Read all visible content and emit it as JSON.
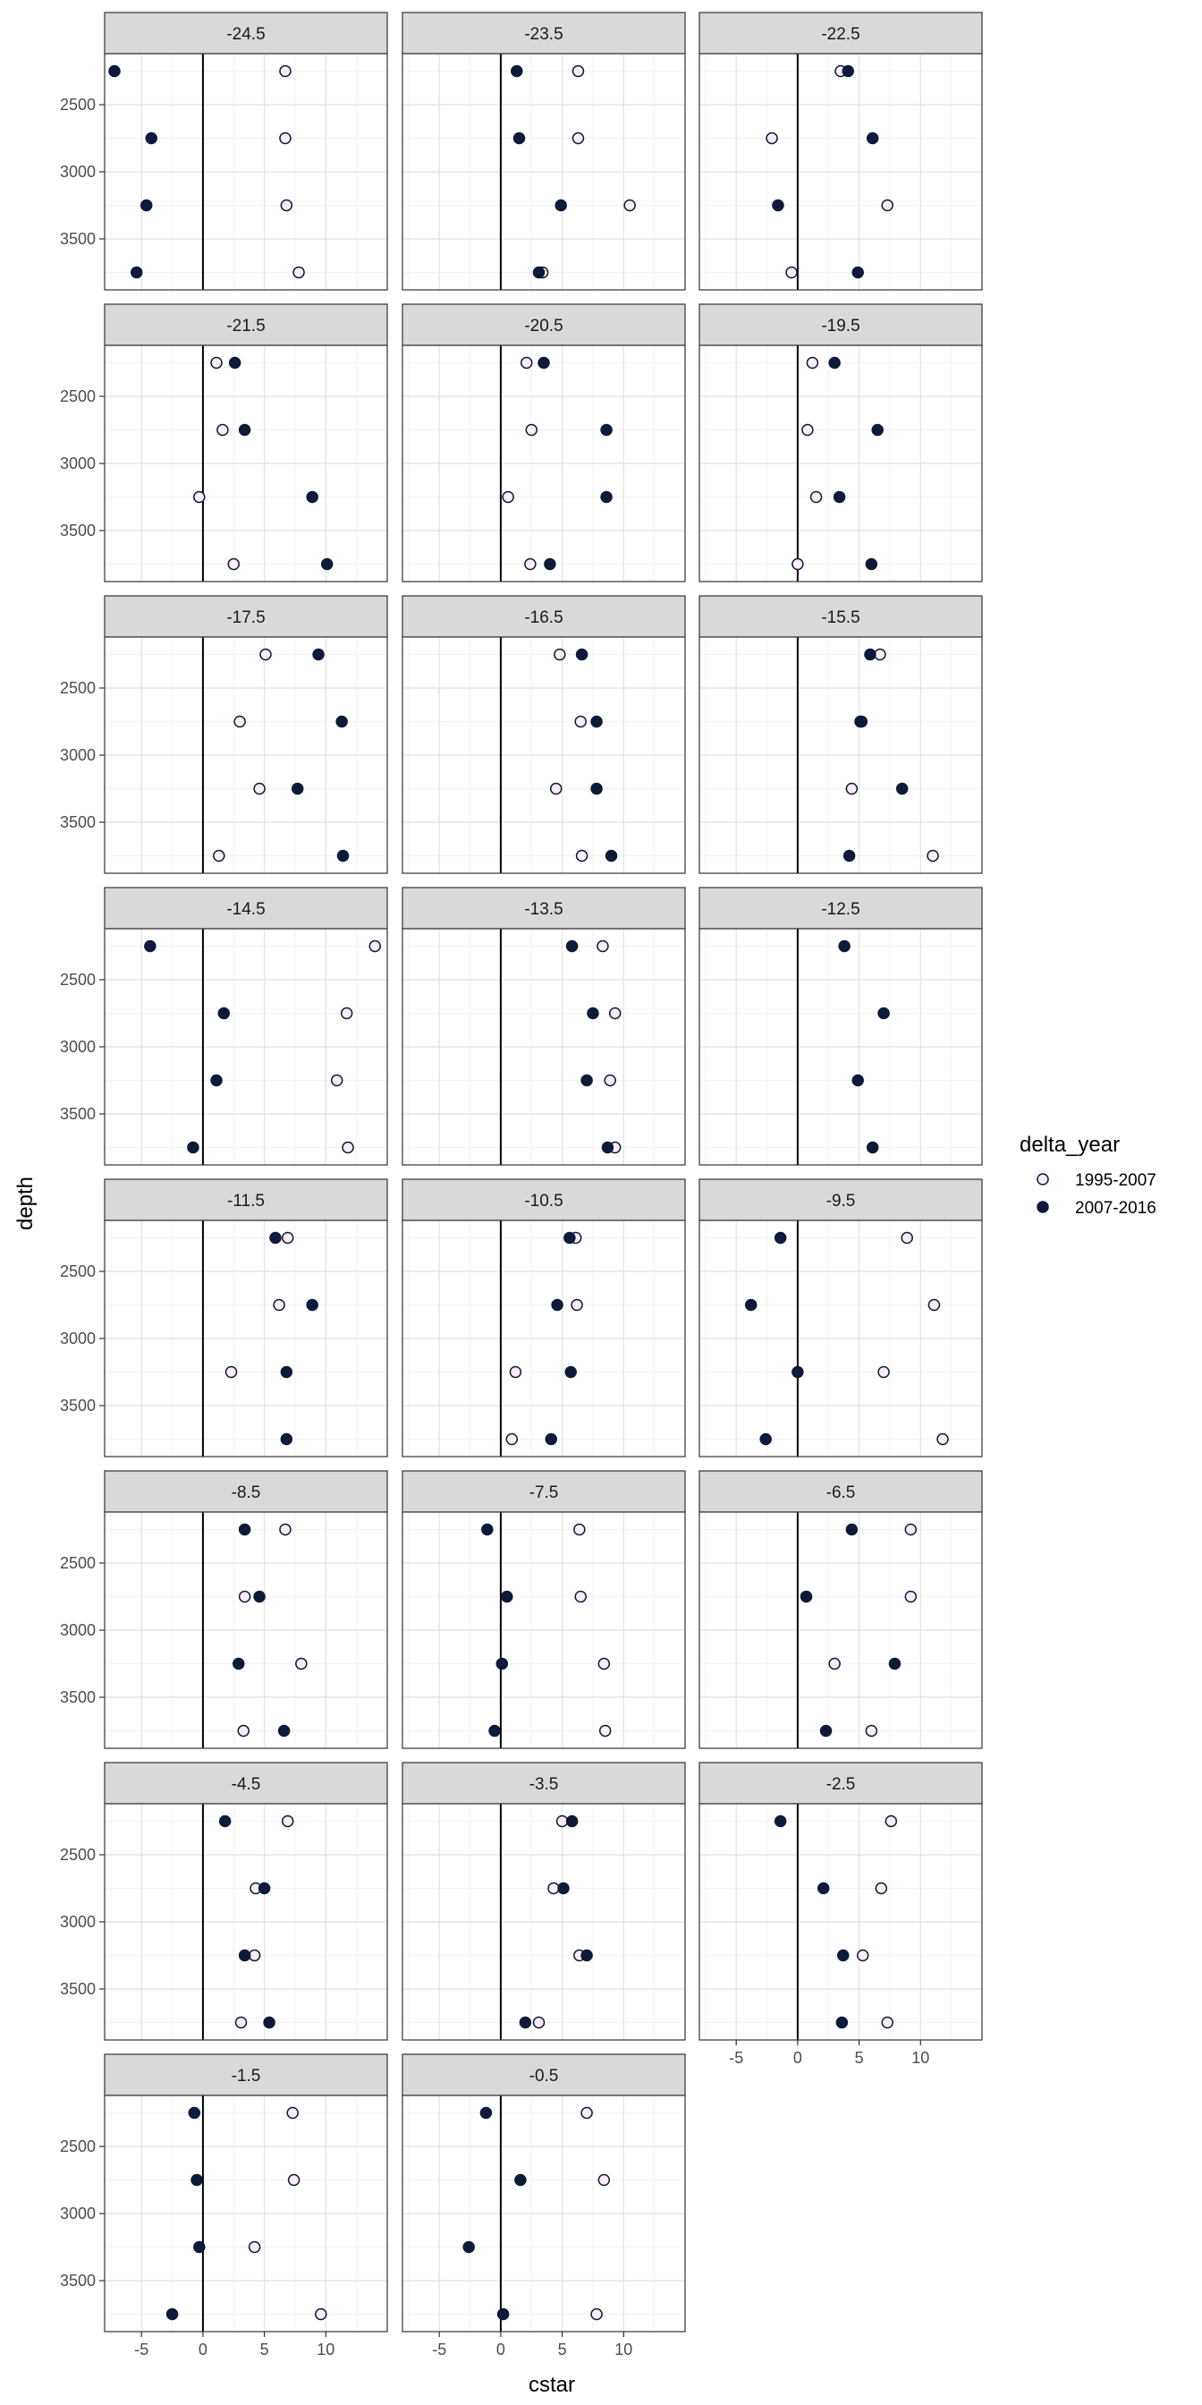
{
  "chart_data": {
    "type": "scatter",
    "facet_by": "latitude band",
    "xlabel": "cstar",
    "ylabel": "depth",
    "xlim": [
      -8,
      15
    ],
    "ylim": [
      3880,
      2120
    ],
    "y_reversed": true,
    "x_ticks": [
      -5,
      0,
      5,
      10
    ],
    "x_tick_labels": [
      "-5",
      "0",
      "5",
      "10"
    ],
    "y_ticks": [
      2500,
      3000,
      3500
    ],
    "y_tick_labels": [
      "2500",
      "3000",
      "3500"
    ],
    "vline_x": 0,
    "grid": true,
    "legend": {
      "title": "delta_year",
      "position": "right",
      "entries": [
        {
          "label": "1995-2007",
          "fill": "#fcecf5",
          "stroke": "#0d1a3a"
        },
        {
          "label": "2007-2016",
          "fill": "#0d1a3a",
          "stroke": "#0d1a3a"
        }
      ]
    },
    "depths": [
      2250,
      2750,
      3250,
      3750
    ],
    "panels": [
      {
        "label": "-24.5",
        "series": [
          [
            6.7,
            6.7,
            6.8,
            7.8
          ],
          [
            -7.2,
            -4.2,
            -4.6,
            -5.4
          ]
        ]
      },
      {
        "label": "-23.5",
        "series": [
          [
            6.3,
            6.3,
            10.5,
            3.4
          ],
          [
            1.3,
            1.5,
            4.9,
            3.1
          ]
        ]
      },
      {
        "label": "-22.5",
        "series": [
          [
            3.5,
            -2.1,
            7.3,
            -0.5
          ],
          [
            4.1,
            6.1,
            -1.6,
            4.9
          ]
        ]
      },
      {
        "label": "-21.5",
        "series": [
          [
            1.1,
            1.6,
            -0.3,
            2.5
          ],
          [
            2.6,
            3.4,
            8.9,
            10.1
          ]
        ]
      },
      {
        "label": "-20.5",
        "series": [
          [
            2.1,
            2.5,
            0.6,
            2.4
          ],
          [
            3.5,
            8.6,
            8.6,
            4.0
          ]
        ]
      },
      {
        "label": "-19.5",
        "series": [
          [
            1.2,
            0.8,
            1.5,
            0.0
          ],
          [
            3.0,
            6.5,
            3.4,
            6.0
          ]
        ]
      },
      {
        "label": "-17.5",
        "series": [
          [
            5.1,
            3.0,
            4.6,
            1.3
          ],
          [
            9.4,
            11.3,
            7.7,
            11.4
          ]
        ]
      },
      {
        "label": "-16.5",
        "series": [
          [
            4.8,
            6.5,
            4.5,
            6.6
          ],
          [
            6.6,
            7.8,
            7.8,
            9.0
          ]
        ]
      },
      {
        "label": "-15.5",
        "series": [
          [
            6.7,
            5.1,
            4.4,
            11.0
          ],
          [
            5.9,
            5.2,
            8.5,
            4.2
          ]
        ]
      },
      {
        "label": "-14.5",
        "series": [
          [
            14.0,
            11.7,
            10.9,
            11.8
          ],
          [
            -4.3,
            1.7,
            1.1,
            -0.8
          ]
        ]
      },
      {
        "label": "-13.5",
        "series": [
          [
            8.3,
            9.3,
            8.9,
            9.3
          ],
          [
            5.8,
            7.5,
            7.0,
            8.7
          ]
        ]
      },
      {
        "label": "-12.5",
        "series": [
          [],
          [
            3.8,
            7.0,
            4.9,
            6.1
          ]
        ]
      },
      {
        "label": "-11.5",
        "series": [
          [
            6.9,
            6.2,
            2.3,
            null
          ],
          [
            5.9,
            8.9,
            6.8,
            6.8
          ]
        ]
      },
      {
        "label": "-10.5",
        "series": [
          [
            6.1,
            6.2,
            1.2,
            0.9
          ],
          [
            5.6,
            4.6,
            5.7,
            4.1
          ]
        ]
      },
      {
        "label": "-9.5",
        "series": [
          [
            8.9,
            11.1,
            7.0,
            11.8
          ],
          [
            -1.4,
            -3.8,
            0.0,
            -2.6
          ]
        ]
      },
      {
        "label": "-8.5",
        "series": [
          [
            6.7,
            3.4,
            8.0,
            3.3
          ],
          [
            3.4,
            4.6,
            2.9,
            6.6
          ]
        ]
      },
      {
        "label": "-7.5",
        "series": [
          [
            6.4,
            6.5,
            8.4,
            8.5
          ],
          [
            -1.1,
            0.5,
            0.1,
            -0.5
          ]
        ]
      },
      {
        "label": "-6.5",
        "series": [
          [
            9.2,
            9.2,
            3.0,
            6.0
          ],
          [
            4.4,
            0.7,
            7.9,
            2.3
          ]
        ]
      },
      {
        "label": "-4.5",
        "series": [
          [
            6.9,
            4.3,
            4.2,
            3.1
          ],
          [
            1.8,
            5.0,
            3.4,
            5.4
          ]
        ]
      },
      {
        "label": "-3.5",
        "series": [
          [
            5.0,
            4.3,
            6.4,
            3.1
          ],
          [
            5.8,
            5.1,
            7.0,
            2.0
          ]
        ]
      },
      {
        "label": "-2.5",
        "series": [
          [
            7.6,
            6.8,
            5.3,
            7.3
          ],
          [
            -1.4,
            2.1,
            3.7,
            3.6
          ]
        ]
      },
      {
        "label": "-1.5",
        "series": [
          [
            7.3,
            7.4,
            4.2,
            9.6
          ],
          [
            -0.7,
            -0.5,
            -0.3,
            -2.5
          ]
        ]
      },
      {
        "label": "-0.5",
        "series": [
          [
            7.0,
            8.4,
            null,
            7.8
          ],
          [
            -1.2,
            1.6,
            -2.6,
            0.2
          ]
        ]
      }
    ]
  }
}
